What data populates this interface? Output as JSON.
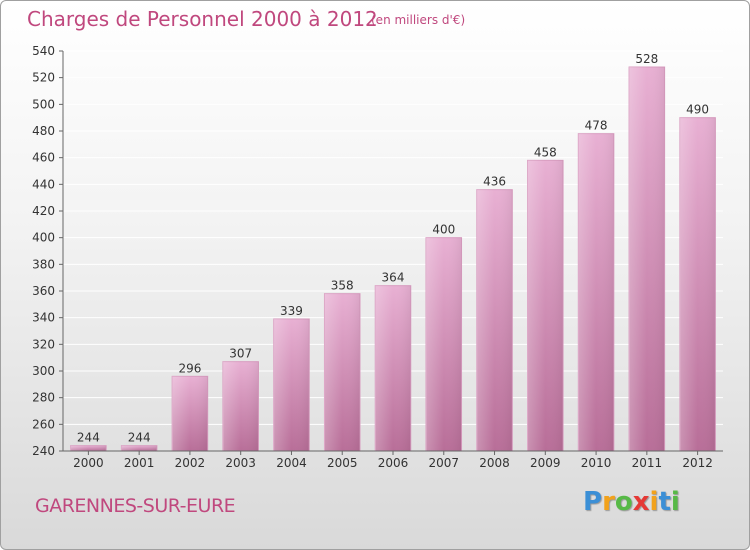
{
  "header": {
    "title": "Charges de Personnel 2000 à 2012",
    "subtitle": "(en milliers d'€)"
  },
  "footer": {
    "commune": "GARENNES-SUR-EURE",
    "brand_letters": [
      "P",
      "r",
      "o",
      "x",
      "i",
      "t",
      "i"
    ],
    "brand_colors": [
      "#3b8fd6",
      "#f2a21b",
      "#57b947",
      "#e53935",
      "#f2a21b",
      "#3b8fd6",
      "#57b947"
    ]
  },
  "colors": {
    "bar_top": "#e8b0d3",
    "bar_bottom": "#b86e98",
    "grid": "#ffffff",
    "axis_text": "#333333",
    "accent": "#c0487e"
  },
  "chart_data": {
    "type": "bar",
    "categories": [
      "2000",
      "2001",
      "2002",
      "2003",
      "2004",
      "2005",
      "2006",
      "2007",
      "2008",
      "2009",
      "2010",
      "2011",
      "2012"
    ],
    "values": [
      244,
      244,
      296,
      307,
      339,
      358,
      364,
      400,
      436,
      458,
      478,
      528,
      490
    ],
    "ylim": [
      240,
      540
    ],
    "yticks": [
      240,
      260,
      280,
      300,
      320,
      340,
      360,
      380,
      400,
      420,
      440,
      460,
      480,
      500,
      520,
      540
    ],
    "grid": true,
    "xlabel": "",
    "ylabel": ""
  }
}
